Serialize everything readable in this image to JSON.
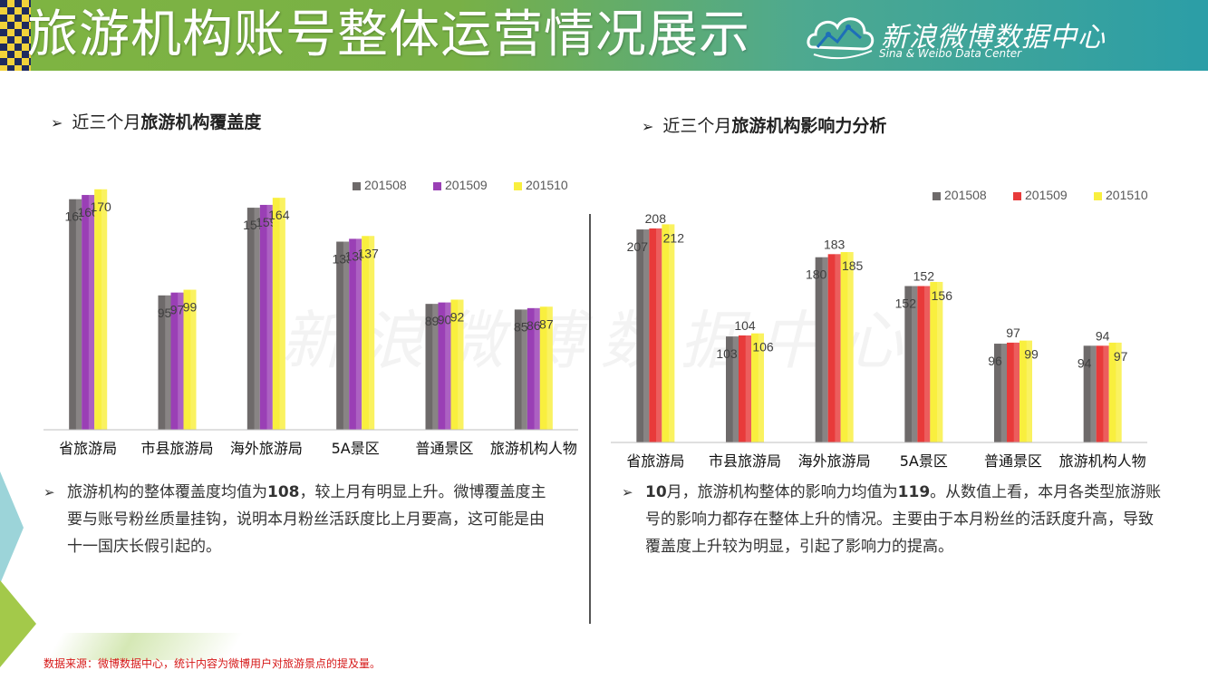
{
  "header": {
    "title": "旅游机构账号整体运营情况展示",
    "logo_cn": "新浪微博数据中心",
    "logo_en": "Sina & Weibo Data Center"
  },
  "watermark": "新浪微博数据中心",
  "left": {
    "heading_prefix": "近三个月",
    "heading_bold": "旅游机构覆盖度",
    "desc_part1": "旅游机构的整体覆盖度均值为",
    "desc_value": "108",
    "desc_part2": "，较上月有明显上升。微博覆盖度主要与账号粉丝质量挂钩，说明本月粉丝活跃度比上月要高，这可能是由十一国庆长假引起的。"
  },
  "right": {
    "heading_prefix": "近三个月",
    "heading_bold": "旅游机构影响力分析",
    "desc_month": "10",
    "desc_part1": "月，旅游机构整体的影响力均值为",
    "desc_value": "119",
    "desc_part2": "。从数值上看，本月各类型旅游账号的影响力都存在整体上升的情况。主要由于本月粉丝的活跃度升高，导致覆盖度上升较为明显，引起了影响力的提高。"
  },
  "source_note": "数据来源：微博数据中心，统计内容为微博用户对旅游景点的提及量。",
  "chart_data": [
    {
      "type": "bar",
      "categories": [
        "省旅游局",
        "市县旅游局",
        "海外旅游局",
        "5A景区",
        "普通景区",
        "旅游机构人物"
      ],
      "series": [
        {
          "name": "201508",
          "values": [
            163,
            95,
            157,
            133,
            89,
            85
          ],
          "color": "#6e6a6a"
        },
        {
          "name": "201509",
          "values": [
            166,
            97,
            159,
            135,
            90,
            86
          ],
          "color": "#9a3fb5"
        },
        {
          "name": "201510",
          "values": [
            170,
            99,
            164,
            137,
            92,
            87
          ],
          "color": "#f9ef3e"
        }
      ],
      "value_labels": [
        [
          "163",
          "95",
          "157",
          "133",
          "89",
          "85"
        ],
        [
          "166",
          "97",
          "159",
          "135",
          "90",
          "86"
        ],
        [
          "170",
          "99",
          "164",
          "137",
          "92",
          "87"
        ]
      ],
      "ylim": [
        0,
        175
      ],
      "legend_position": "top-right",
      "grid": false
    },
    {
      "type": "bar",
      "categories": [
        "省旅游局",
        "市县旅游局",
        "海外旅游局",
        "5A景区",
        "普通景区",
        "旅游机构人物"
      ],
      "series": [
        {
          "name": "201508",
          "values": [
            207,
            103,
            180,
            152,
            96,
            94
          ],
          "color": "#6e6a6a"
        },
        {
          "name": "201509",
          "values": [
            208,
            104,
            183,
            152,
            97,
            94
          ],
          "color": "#e83a3a"
        },
        {
          "name": "201510",
          "values": [
            212,
            106,
            185,
            156,
            99,
            97
          ],
          "color": "#f9ef3e"
        }
      ],
      "value_labels": [
        [
          "207",
          "103",
          "180",
          "152",
          "96",
          "94"
        ],
        [
          "208",
          "104",
          "183",
          "152",
          "97",
          "94"
        ],
        [
          "212",
          "106",
          "185",
          "156",
          "99",
          "97"
        ]
      ],
      "ylim": [
        0,
        215
      ],
      "legend_position": "top-right",
      "grid": false
    }
  ]
}
